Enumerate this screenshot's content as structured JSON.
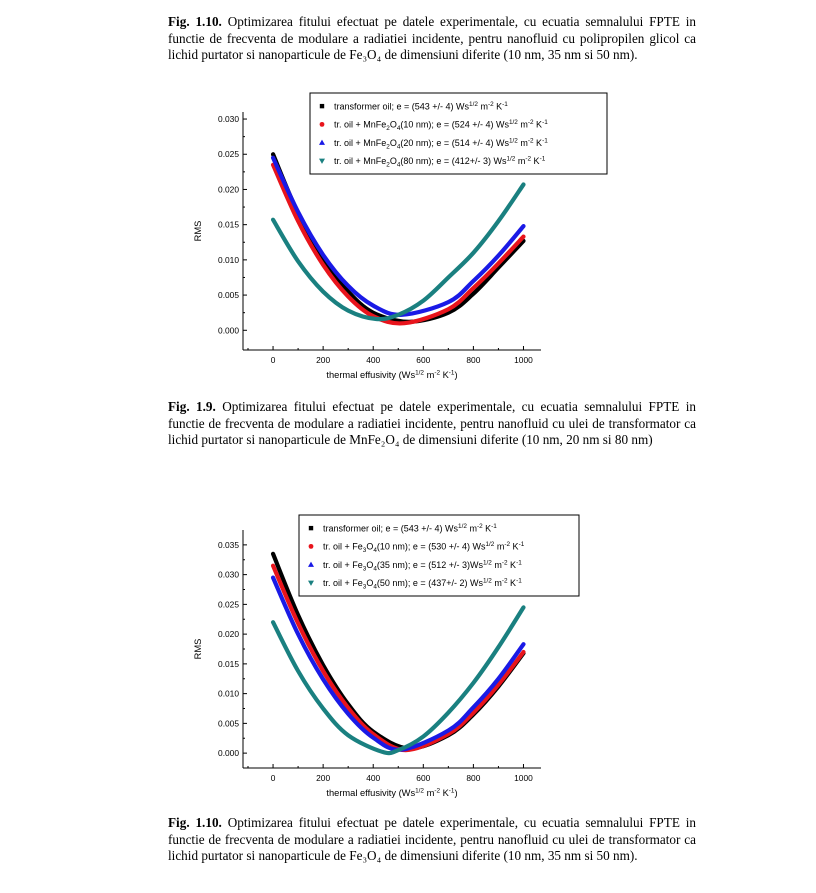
{
  "captions": {
    "top": {
      "label": "Fig. 1.10.",
      "text": " Optimizarea fitului  efectuat pe datele experimentale, cu ecuatia semnalului FPTE in functie de frecventa de modulare a radiatiei incidente, pentru nanofluid cu polipropilen glicol ca lichid purtator si nanoparticule de Fe₃O₄ de dimensiuni diferite (10 nm, 35 nm si 50 nm)."
    },
    "mid": {
      "label": "Fig. 1.9.",
      "text": " Optimizarea fitului  efectuat pe datele experimentale, cu ecuatia semnalului FPTE in functie de frecventa de modulare a radiatiei incidente, pentru nanofluid cu ulei de transformator ca lichid purtator si nanoparticule de MnFe₂O₄ de dimensiuni diferite (10 nm, 20 nm si 80 nm)"
    },
    "bot": {
      "label": "Fig. 1.10.",
      "text": " Optimizarea fitului  efectuat pe datele experimentale, cu ecuatia semnalului FPTE in functie de frecventa de modulare a radiatiei incidente, pentru nanofluid cu ulei de transformator ca lichid purtator si nanoparticule de Fe₃O₄ de dimensiuni diferite (10 nm, 35 nm si 50 nm)."
    }
  },
  "chart_data": [
    {
      "type": "line",
      "xlabel": "thermal effusivity (Ws^1/2 m^-2 K^-1)",
      "ylabel": "RMS",
      "xlim": [
        -120,
        1070
      ],
      "ylim": [
        -0.0028,
        0.031
      ],
      "xticks": [
        0,
        200,
        400,
        600,
        800,
        1000
      ],
      "yticks": [
        0.0,
        0.005,
        0.01,
        0.015,
        0.02,
        0.025,
        0.03
      ],
      "ytick_labels": [
        "0.000",
        "0.005",
        "0.010",
        "0.015",
        "0.020",
        "0.025",
        "0.030"
      ],
      "legend_position": "top-right",
      "series": [
        {
          "name": "transformer oil; e = (543 +/- 4) Ws^1/2 m^-2 K^-1",
          "color": "#000000",
          "marker": "square",
          "x": [
            0,
            100,
            200,
            300,
            400,
            543,
            700,
            800,
            900,
            1000
          ],
          "y": [
            0.025,
            0.0166,
            0.0101,
            0.0055,
            0.0025,
            0.0012,
            0.0025,
            0.0052,
            0.0089,
            0.0127
          ]
        },
        {
          "name": "tr. oil + MnFe2O4(10 nm); e = (524 +/- 4) Ws^1/2 m^-2 K^-1",
          "color": "#e8141c",
          "marker": "circle",
          "x": [
            0,
            100,
            200,
            300,
            400,
            524,
            700,
            800,
            900,
            1000
          ],
          "y": [
            0.0235,
            0.0155,
            0.0093,
            0.0048,
            0.002,
            0.001,
            0.003,
            0.006,
            0.0095,
            0.0133
          ]
        },
        {
          "name": "tr. oil + MnFe2O4(20 nm); e = (514 +/- 4) Ws^1/2 m^-2 K^-1",
          "color": "#1a1ae6",
          "marker": "triangle-up",
          "x": [
            0,
            100,
            200,
            300,
            400,
            514,
            700,
            800,
            900,
            1000
          ],
          "y": [
            0.0245,
            0.0168,
            0.0107,
            0.0063,
            0.0035,
            0.0022,
            0.004,
            0.007,
            0.0106,
            0.0148
          ]
        },
        {
          "name": "tr. oil + MnFe2O4(80 nm); e = (412+/- 3) Ws^1/2 m^-2 K^-1",
          "color": "#1a8080",
          "marker": "triangle-down",
          "x": [
            0,
            100,
            200,
            300,
            412,
            500,
            600,
            700,
            800,
            900,
            1000
          ],
          "y": [
            0.0157,
            0.0098,
            0.0055,
            0.0028,
            0.0016,
            0.0022,
            0.0042,
            0.0075,
            0.011,
            0.0155,
            0.0207
          ]
        }
      ]
    },
    {
      "type": "line",
      "xlabel": "thermal effusivity (Ws^1/2 m^-2 K^-1)",
      "ylabel": "RMS",
      "xlim": [
        -120,
        1070
      ],
      "ylim": [
        -0.0025,
        0.0375
      ],
      "xticks": [
        0,
        200,
        400,
        600,
        800,
        1000
      ],
      "yticks": [
        0.0,
        0.005,
        0.01,
        0.015,
        0.02,
        0.025,
        0.03,
        0.035
      ],
      "ytick_labels": [
        "0.000",
        "0.005",
        "0.010",
        "0.015",
        "0.020",
        "0.025",
        "0.030",
        "0.035"
      ],
      "legend_position": "top-right",
      "series": [
        {
          "name": "transformer oil; e = (543 +/- 4) Ws^1/2 m^-2 K^-1",
          "color": "#000000",
          "marker": "square",
          "x": [
            0,
            100,
            200,
            300,
            400,
            543,
            700,
            800,
            900,
            1000
          ],
          "y": [
            0.0335,
            0.0232,
            0.0148,
            0.0082,
            0.0036,
            0.0008,
            0.003,
            0.0065,
            0.0112,
            0.0168
          ]
        },
        {
          "name": "tr. oil + Fe3O4(10 nm); e = (530 +/- 4) Ws^1/2 m^-2 K^-1",
          "color": "#e8141c",
          "marker": "circle",
          "x": [
            0,
            100,
            200,
            300,
            400,
            530,
            700,
            800,
            900,
            1000
          ],
          "y": [
            0.0315,
            0.0218,
            0.0138,
            0.0076,
            0.0032,
            0.0005,
            0.0032,
            0.0068,
            0.0115,
            0.017
          ]
        },
        {
          "name": "tr. oil + Fe3O4(35 nm); e = (512 +/- 3)Ws^1/2 m^-2 K^-1",
          "color": "#1a1ae6",
          "marker": "triangle-up",
          "x": [
            0,
            100,
            200,
            300,
            400,
            512,
            700,
            800,
            900,
            1000
          ],
          "y": [
            0.0295,
            0.02,
            0.0124,
            0.0066,
            0.0026,
            0.0006,
            0.0038,
            0.0077,
            0.0125,
            0.0183
          ]
        },
        {
          "name": "tr. oil + Fe3O4(50 nm); e = (437+/- 2) Ws^1/2 m^-2 K^-1",
          "color": "#1a8080",
          "marker": "triangle-down",
          "x": [
            0,
            100,
            200,
            300,
            437,
            500,
            600,
            700,
            800,
            900,
            1000
          ],
          "y": [
            0.022,
            0.0138,
            0.0075,
            0.003,
            0.0002,
            0.0005,
            0.0028,
            0.0068,
            0.0118,
            0.0178,
            0.0245
          ]
        }
      ]
    }
  ]
}
